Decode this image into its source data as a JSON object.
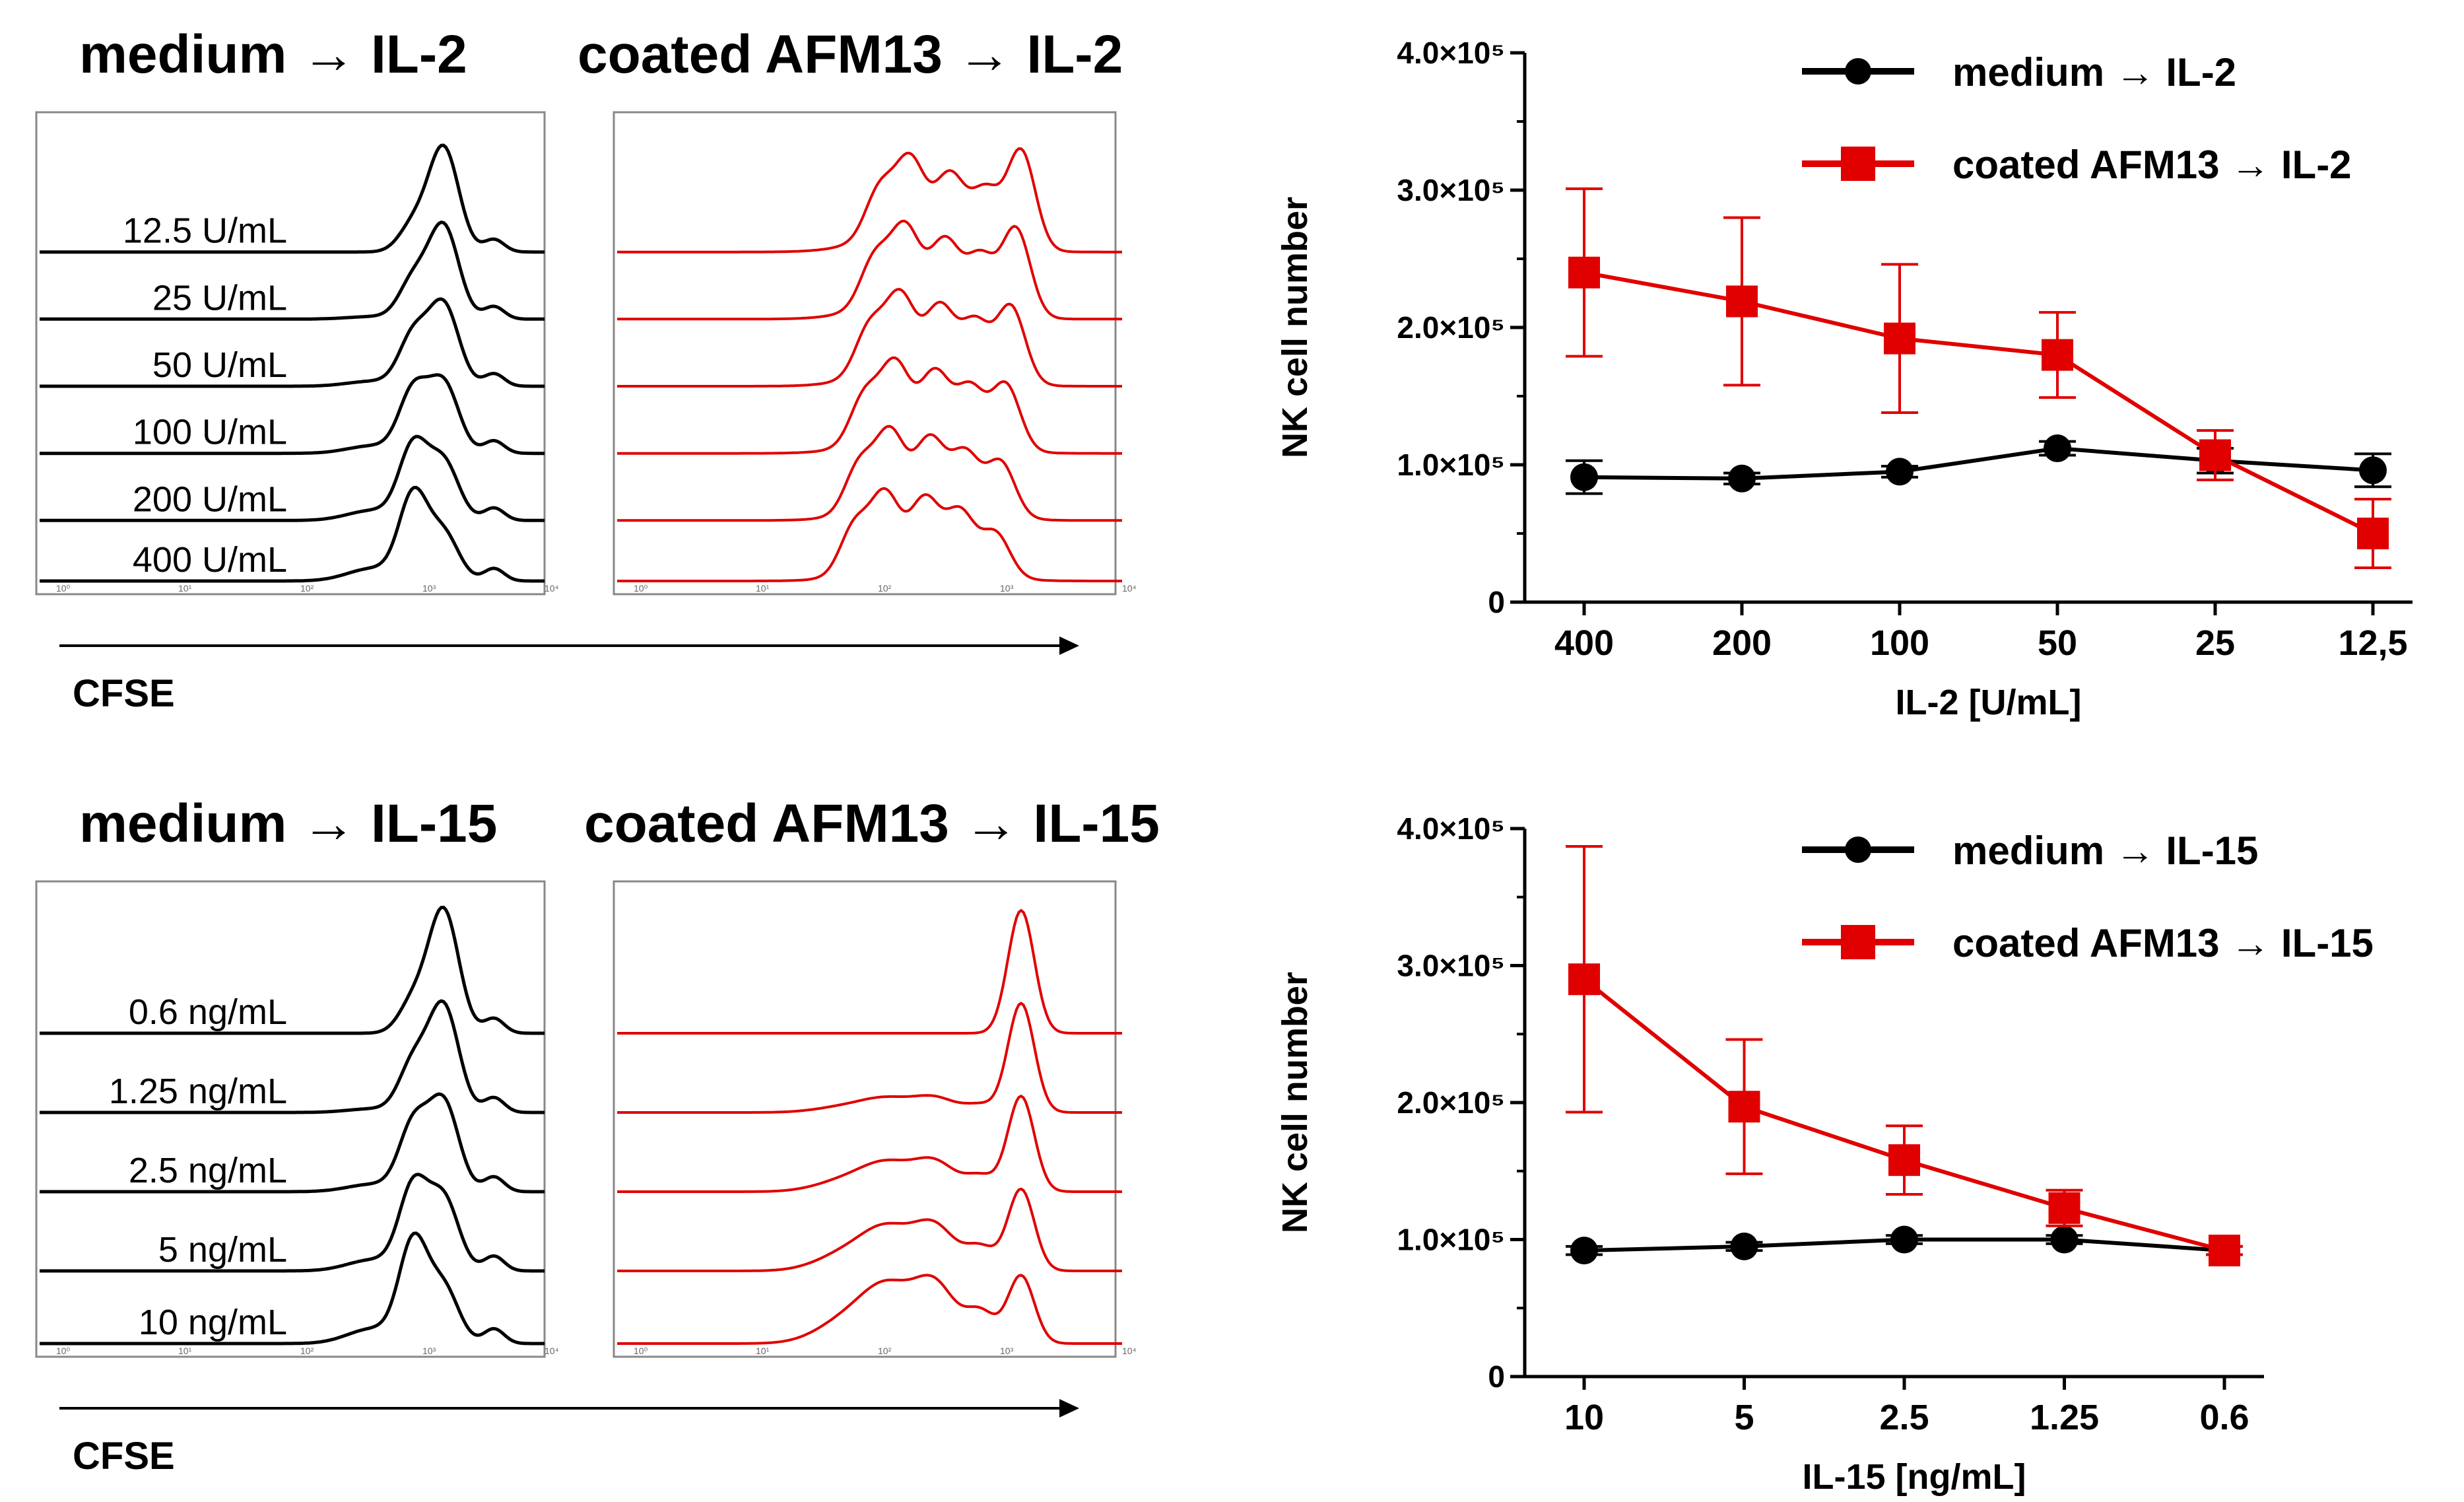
{
  "panels": {
    "top": {
      "hist_left_title": "medium → IL-2",
      "hist_right_title": "coated AFM13 → IL-2",
      "concentrations": [
        "12.5 U/mL",
        "25 U/mL",
        "50 U/mL",
        "100 U/mL",
        "200 U/mL",
        "400 U/mL"
      ],
      "axis_label": "CFSE",
      "tick_labels": [
        "10⁰",
        "10¹",
        "10²",
        "10³",
        "10⁴"
      ]
    },
    "bottom": {
      "hist_left_title": "medium → IL-15",
      "hist_right_title": "coated AFM13 → IL-15",
      "concentrations": [
        "0.6 ng/mL",
        "1.25 ng/mL",
        "2.5 ng/mL",
        "5 ng/mL",
        "10 ng/mL"
      ],
      "axis_label": "CFSE",
      "tick_labels": [
        "10⁰",
        "10¹",
        "10²",
        "10³",
        "10⁴"
      ]
    }
  },
  "colors": {
    "medium": "#000000",
    "afm13": "#e00000"
  },
  "chart_data": [
    {
      "type": "line",
      "xlabel": "IL-2  [U/mL]",
      "ylabel": "NK cell number",
      "categories": [
        "400",
        "200",
        "100",
        "50",
        "25",
        "12,5"
      ],
      "ylim": [
        0,
        400000
      ],
      "yticks": [
        {
          "value": 0,
          "label": "0"
        },
        {
          "value": 100000,
          "label": "1.0×10⁵"
        },
        {
          "value": 200000,
          "label": "2.0×10⁵"
        },
        {
          "value": 300000,
          "label": "3.0×10⁵"
        },
        {
          "value": 400000,
          "label": "4.0×10⁵"
        }
      ],
      "series": [
        {
          "name": "medium →  IL-2",
          "marker": "circle",
          "color": "#000000",
          "values": [
            91000,
            90000,
            95000,
            112000,
            103000,
            96000
          ],
          "errors": [
            12000,
            4000,
            4000,
            5000,
            9000,
            12000
          ]
        },
        {
          "name": "coated AFM13 →  IL-2",
          "marker": "square",
          "color": "#e00000",
          "values": [
            240000,
            219000,
            192000,
            180000,
            107000,
            50000
          ],
          "errors": [
            61000,
            61000,
            54000,
            31000,
            18000,
            25000
          ]
        }
      ]
    },
    {
      "type": "line",
      "xlabel": "IL-15  [ng/mL]",
      "ylabel": "NK cell number",
      "categories": [
        "10",
        "5",
        "2.5",
        "1.25",
        "0.6"
      ],
      "ylim": [
        0,
        400000
      ],
      "yticks": [
        {
          "value": 0,
          "label": "0"
        },
        {
          "value": 100000,
          "label": "1.0×10⁵"
        },
        {
          "value": 200000,
          "label": "2.0×10⁵"
        },
        {
          "value": 300000,
          "label": "3.0×10⁵"
        },
        {
          "value": 400000,
          "label": "4.0×10⁵"
        }
      ],
      "series": [
        {
          "name": "medium →  IL-15",
          "marker": "circle",
          "color": "#000000",
          "values": [
            92000,
            95000,
            100000,
            100000,
            92000
          ],
          "errors": [
            3000,
            3000,
            3000,
            3000,
            3000
          ]
        },
        {
          "name": "coated AFM13 →  IL-15",
          "marker": "square",
          "color": "#e00000",
          "values": [
            290000,
            197000,
            158000,
            123000,
            92000
          ],
          "errors": [
            97000,
            49000,
            25000,
            13000,
            3000
          ]
        }
      ]
    }
  ]
}
